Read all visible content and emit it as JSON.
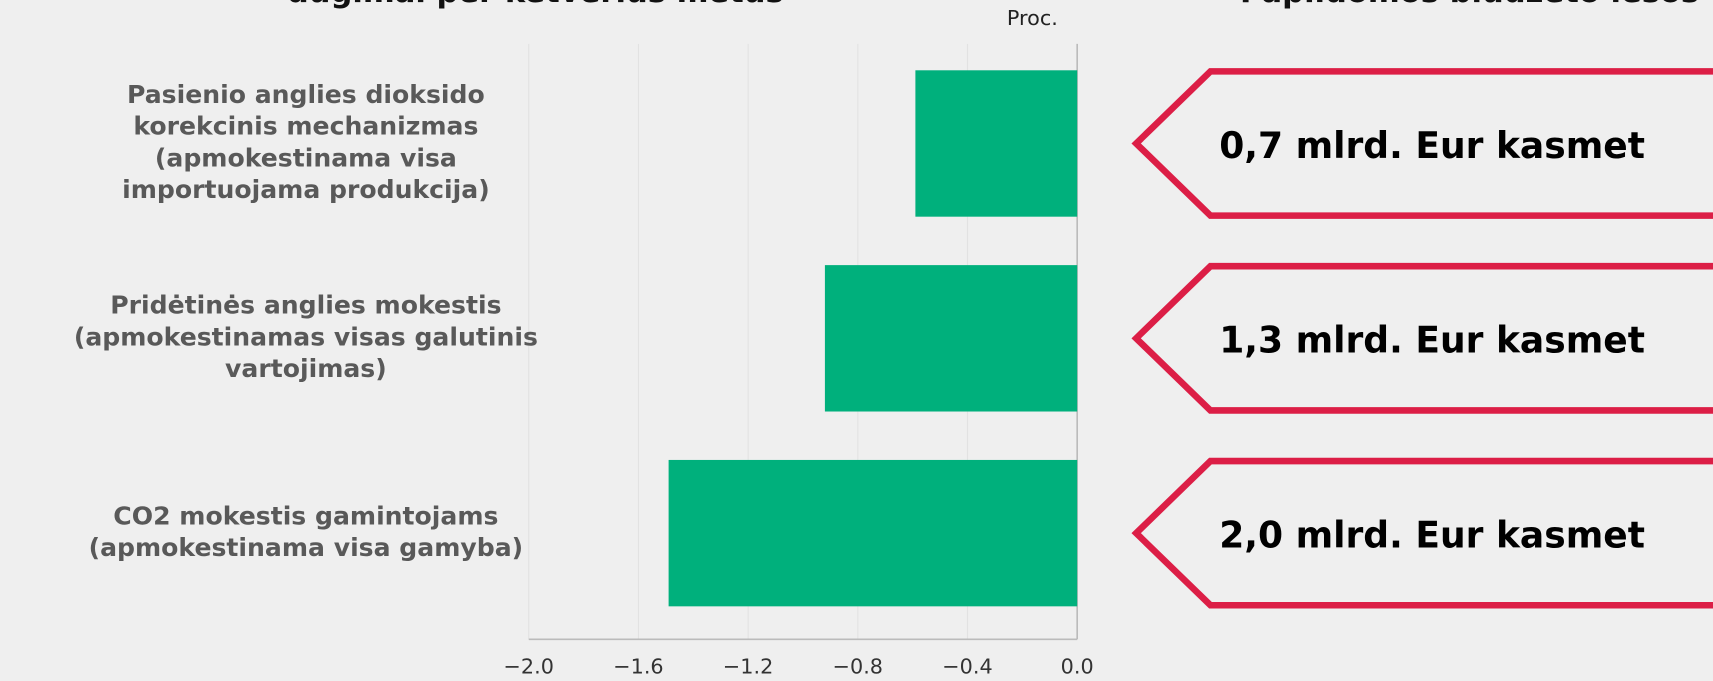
{
  "chart_data": {
    "type": "bar",
    "orientation": "horizontal",
    "titles": [
      "dugimai per ketverius metus",
      "Papildomos biudžeto lėšos"
    ],
    "x_label": "Proc.",
    "categories": [
      [
        "Pasienio anglies dioksido",
        "korekcinis mechanizmas",
        "(apmokestinama visa",
        "importuojama produkcija)"
      ],
      [
        "Pridėtinės anglies mokestis",
        "(apmokestinamas visas galutinis",
        "vartojimas)"
      ],
      [
        "CO2 mokestis gamintojams",
        "(apmokestinama visa gamyba)"
      ]
    ],
    "values": [
      -0.59,
      -0.92,
      -1.49
    ],
    "color": "#00b07c",
    "xlim": [
      -2,
      0
    ],
    "xticks": [
      {
        "value": -2,
        "label": "−2.0"
      },
      {
        "value": -1.6,
        "label": "−1.6"
      },
      {
        "value": -1.2,
        "label": "−1.2"
      },
      {
        "value": -0.8,
        "label": "−0.8"
      },
      {
        "value": -0.4,
        "label": "−0.4"
      },
      {
        "value": 0,
        "label": "0.0"
      }
    ],
    "grid": true,
    "annotations": [
      "0,7 mlrd. Eur kasmet",
      "1,3 mlrd. Eur kasmet",
      "2,0 mlrd. Eur kasmet"
    ],
    "annotation_color": "#dc1e46"
  }
}
